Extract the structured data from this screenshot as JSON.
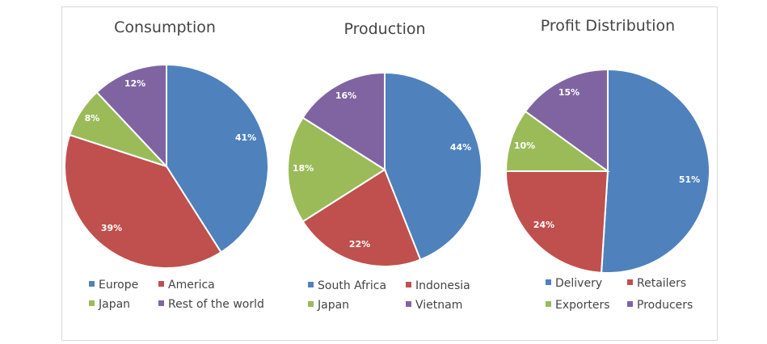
{
  "colors": {
    "blue": "#4f81bd",
    "red": "#c0504d",
    "green": "#9bbb59",
    "purple": "#8064a2"
  },
  "chart_data": [
    {
      "type": "pie",
      "title": "Consumption",
      "categories": [
        "Europe",
        "America",
        "Japan",
        "Rest of the world"
      ],
      "values": [
        41,
        39,
        8,
        12
      ],
      "labels": [
        "41%",
        "39%",
        "8%",
        "12%"
      ],
      "colors": [
        "#4f81bd",
        "#c0504d",
        "#9bbb59",
        "#8064a2"
      ],
      "legend": "bottom"
    },
    {
      "type": "pie",
      "title": "Production",
      "categories": [
        "South Africa",
        "Indonesia",
        "Japan",
        "Vietnam"
      ],
      "values": [
        44,
        22,
        18,
        16
      ],
      "labels": [
        "44%",
        "22%",
        "18%",
        "16%"
      ],
      "colors": [
        "#4f81bd",
        "#c0504d",
        "#9bbb59",
        "#8064a2"
      ],
      "legend": "bottom"
    },
    {
      "type": "pie",
      "title": "Profit Distribution",
      "categories": [
        "Delivery",
        "Retailers",
        "Exporters",
        "Producers"
      ],
      "values": [
        51,
        24,
        10,
        15
      ],
      "labels": [
        "51%",
        "24%",
        "10%",
        "15%"
      ],
      "colors": [
        "#4f81bd",
        "#c0504d",
        "#9bbb59",
        "#8064a2"
      ],
      "legend": "bottom"
    }
  ]
}
